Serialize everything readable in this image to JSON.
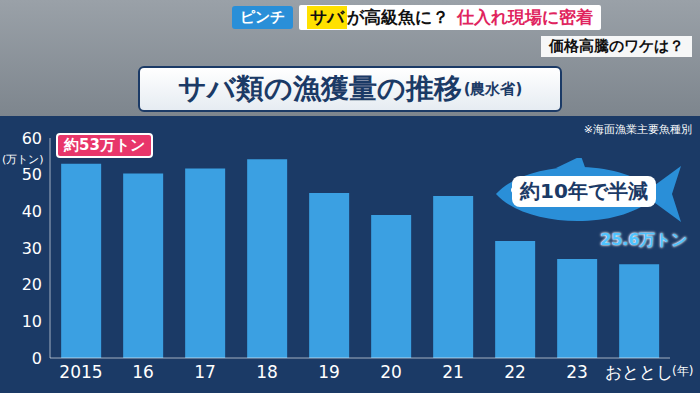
{
  "header": {
    "tag": "ピンチ",
    "headline": [
      "サバ",
      "が高級魚に？",
      "仕入れ現場に密着"
    ],
    "subheadline": "価格高騰のワケは？"
  },
  "chart_data": {
    "type": "bar",
    "title": "サバ類の漁獲量の推移",
    "subtitle": "(農水省)",
    "y_label": "(万トン)",
    "x_label": "(年)",
    "note": "※海面漁業主要魚種別",
    "annotations": [
      "約53万トン",
      "約10年で半減",
      "25.6万トン"
    ],
    "categories": [
      "2015",
      "16",
      "17",
      "18",
      "19",
      "20",
      "21",
      "22",
      "23",
      "おととし"
    ],
    "values": [
      53,
      50.3,
      51.7,
      54.2,
      45,
      39,
      44.2,
      31.9,
      27,
      25.6
    ],
    "color": "#3ba0e2",
    "ylim": [
      0,
      60
    ],
    "yticks": [
      0,
      10,
      20,
      30,
      40,
      50,
      60
    ],
    "grid": false
  }
}
